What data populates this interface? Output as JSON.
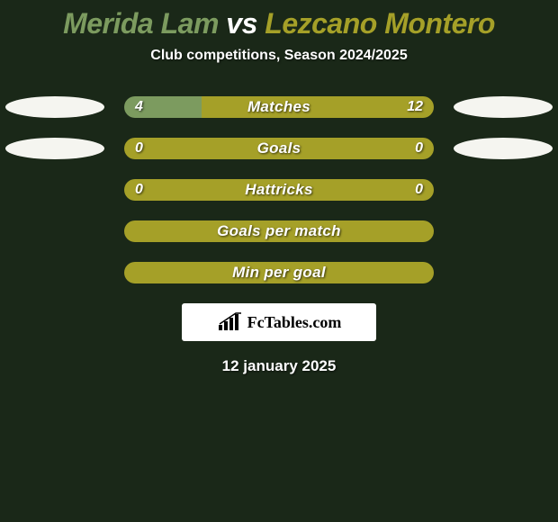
{
  "background_color": "#1a2818",
  "title": {
    "player1": "Merida Lam",
    "vs": "vs",
    "player2": "Lezcano Montero",
    "player1_color": "#7c9b5f",
    "vs_color": "#ffffff",
    "player2_color": "#a5a028",
    "fontsize": 32
  },
  "subtitle": "Club competitions, Season 2024/2025",
  "avatar_left_color": "#f5f5f0",
  "avatar_right_color": "#f5f5f0",
  "bars": [
    {
      "label": "Matches",
      "left_value": "4",
      "right_value": "12",
      "left_num": 4,
      "right_num": 12,
      "left_color": "#7c9b5f",
      "right_color": "#a5a028",
      "has_avatars": true
    },
    {
      "label": "Goals",
      "left_value": "0",
      "right_value": "0",
      "left_num": 0,
      "right_num": 0,
      "left_color": "#7c9b5f",
      "right_color": "#a5a028",
      "has_avatars": true
    },
    {
      "label": "Hattricks",
      "left_value": "0",
      "right_value": "0",
      "left_num": 0,
      "right_num": 0,
      "left_color": "#7c9b5f",
      "right_color": "#a5a028",
      "has_avatars": false
    },
    {
      "label": "Goals per match",
      "left_value": "",
      "right_value": "",
      "left_num": 0,
      "right_num": 0,
      "left_color": "#7c9b5f",
      "right_color": "#a5a028",
      "has_avatars": false
    },
    {
      "label": "Min per goal",
      "left_value": "",
      "right_value": "",
      "left_num": 0,
      "right_num": 0,
      "left_color": "#7c9b5f",
      "right_color": "#a5a028",
      "has_avatars": false
    }
  ],
  "branding": "FcTables.com",
  "date": "12 january 2025"
}
